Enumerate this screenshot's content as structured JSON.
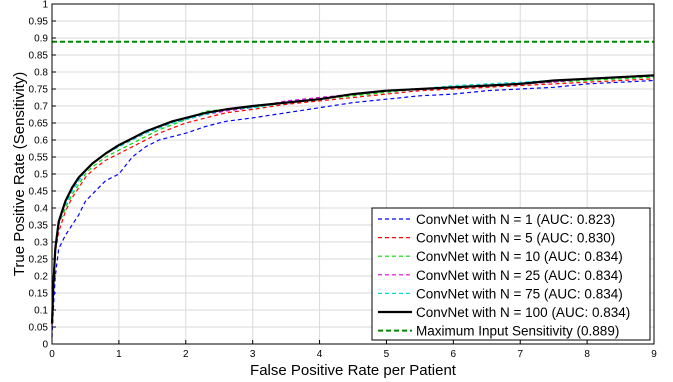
{
  "chart_data": {
    "type": "line",
    "title": "",
    "xlabel": "False Positive Rate per Patient",
    "ylabel": "True Positive Rate (Sensitivity)",
    "xlim": [
      0,
      9
    ],
    "ylim": [
      0,
      1
    ],
    "xticks": [
      0,
      1,
      2,
      3,
      4,
      5,
      6,
      7,
      8,
      9
    ],
    "yticks": [
      0,
      0.05,
      0.1,
      0.15,
      0.2,
      0.25,
      0.3,
      0.35,
      0.4,
      0.45,
      0.5,
      0.55,
      0.6,
      0.65,
      0.7,
      0.75,
      0.8,
      0.85,
      0.9,
      0.95,
      1
    ],
    "grid": true,
    "legend_position": "bottom-right",
    "series": [
      {
        "name": "ConvNet with N = 1 (AUC: 0.823)",
        "color": "#0000ff",
        "style": "dashed",
        "x": [
          0,
          0.02,
          0.05,
          0.1,
          0.2,
          0.3,
          0.4,
          0.5,
          0.6,
          0.8,
          1.0,
          1.2,
          1.4,
          1.6,
          1.8,
          2.0,
          2.3,
          2.6,
          3.0,
          3.5,
          4.0,
          4.5,
          5.0,
          5.5,
          6.0,
          6.5,
          7.0,
          7.5,
          8.0,
          8.5,
          9.0
        ],
        "y": [
          0.02,
          0.1,
          0.2,
          0.28,
          0.32,
          0.35,
          0.38,
          0.42,
          0.44,
          0.48,
          0.5,
          0.55,
          0.58,
          0.6,
          0.61,
          0.62,
          0.64,
          0.655,
          0.665,
          0.68,
          0.695,
          0.71,
          0.72,
          0.73,
          0.735,
          0.745,
          0.75,
          0.755,
          0.765,
          0.77,
          0.775
        ]
      },
      {
        "name": "ConvNet with N = 5 (AUC: 0.830)",
        "color": "#ff0000",
        "style": "dashed",
        "x": [
          0,
          0.02,
          0.05,
          0.1,
          0.2,
          0.3,
          0.4,
          0.5,
          0.6,
          0.8,
          1.0,
          1.2,
          1.4,
          1.6,
          1.8,
          2.0,
          2.3,
          2.6,
          3.0,
          3.5,
          4.0,
          4.5,
          5.0,
          5.5,
          6.0,
          6.5,
          7.0,
          7.5,
          8.0,
          8.5,
          9.0
        ],
        "y": [
          0.05,
          0.16,
          0.27,
          0.33,
          0.39,
          0.43,
          0.46,
          0.49,
          0.51,
          0.54,
          0.56,
          0.58,
          0.6,
          0.62,
          0.635,
          0.65,
          0.665,
          0.68,
          0.69,
          0.705,
          0.715,
          0.725,
          0.735,
          0.745,
          0.75,
          0.755,
          0.76,
          0.765,
          0.77,
          0.775,
          0.78
        ]
      },
      {
        "name": "ConvNet with N = 10 (AUC: 0.834)",
        "color": "#00dd00",
        "style": "dashed",
        "x": [
          0,
          0.02,
          0.05,
          0.1,
          0.2,
          0.3,
          0.4,
          0.5,
          0.6,
          0.8,
          1.0,
          1.2,
          1.4,
          1.6,
          1.8,
          2.0,
          2.3,
          2.6,
          3.0,
          3.5,
          4.0,
          4.5,
          5.0,
          5.5,
          6.0,
          6.5,
          7.0,
          7.5,
          8.0,
          8.5,
          9.0
        ],
        "y": [
          0.06,
          0.18,
          0.28,
          0.35,
          0.4,
          0.44,
          0.47,
          0.5,
          0.52,
          0.55,
          0.57,
          0.59,
          0.61,
          0.63,
          0.645,
          0.66,
          0.685,
          0.69,
          0.695,
          0.71,
          0.72,
          0.73,
          0.74,
          0.75,
          0.755,
          0.76,
          0.765,
          0.77,
          0.775,
          0.78,
          0.785
        ]
      },
      {
        "name": "ConvNet with N = 25 (AUC: 0.834)",
        "color": "#dd00dd",
        "style": "dashed",
        "x": [
          0,
          0.02,
          0.05,
          0.1,
          0.2,
          0.3,
          0.4,
          0.5,
          0.6,
          0.8,
          1.0,
          1.2,
          1.4,
          1.6,
          1.8,
          2.0,
          2.3,
          2.6,
          3.0,
          3.5,
          4.0,
          4.5,
          5.0,
          5.5,
          6.0,
          6.5,
          7.0,
          7.5,
          8.0,
          8.5,
          9.0
        ],
        "y": [
          0.06,
          0.17,
          0.28,
          0.35,
          0.41,
          0.45,
          0.48,
          0.51,
          0.53,
          0.56,
          0.58,
          0.6,
          0.62,
          0.635,
          0.65,
          0.66,
          0.675,
          0.685,
          0.695,
          0.715,
          0.725,
          0.735,
          0.745,
          0.75,
          0.755,
          0.76,
          0.765,
          0.77,
          0.78,
          0.785,
          0.79
        ]
      },
      {
        "name": "ConvNet with N = 75 (AUC: 0.834)",
        "color": "#00dddd",
        "style": "dashed",
        "x": [
          0,
          0.02,
          0.05,
          0.1,
          0.2,
          0.3,
          0.4,
          0.5,
          0.6,
          0.8,
          1.0,
          1.2,
          1.4,
          1.6,
          1.8,
          2.0,
          2.3,
          2.6,
          3.0,
          3.5,
          4.0,
          4.5,
          5.0,
          5.5,
          6.0,
          6.5,
          7.0,
          7.5,
          8.0,
          8.5,
          9.0
        ],
        "y": [
          0.06,
          0.17,
          0.28,
          0.35,
          0.41,
          0.45,
          0.48,
          0.51,
          0.53,
          0.56,
          0.58,
          0.6,
          0.62,
          0.635,
          0.65,
          0.66,
          0.675,
          0.69,
          0.695,
          0.71,
          0.72,
          0.735,
          0.745,
          0.75,
          0.76,
          0.765,
          0.77,
          0.775,
          0.78,
          0.785,
          0.79
        ]
      },
      {
        "name": "ConvNet with N = 100 (AUC: 0.834)",
        "color": "#000000",
        "style": "solid",
        "x": [
          0,
          0.02,
          0.05,
          0.1,
          0.2,
          0.3,
          0.4,
          0.5,
          0.6,
          0.8,
          1.0,
          1.2,
          1.4,
          1.6,
          1.8,
          2.0,
          2.3,
          2.6,
          3.0,
          3.5,
          4.0,
          4.5,
          5.0,
          5.5,
          6.0,
          6.5,
          7.0,
          7.5,
          8.0,
          8.5,
          9.0
        ],
        "y": [
          0.06,
          0.17,
          0.28,
          0.36,
          0.42,
          0.46,
          0.49,
          0.51,
          0.53,
          0.56,
          0.585,
          0.605,
          0.625,
          0.64,
          0.655,
          0.665,
          0.68,
          0.69,
          0.7,
          0.71,
          0.72,
          0.735,
          0.745,
          0.75,
          0.755,
          0.76,
          0.765,
          0.775,
          0.78,
          0.785,
          0.79
        ]
      },
      {
        "name": "Maximum Input Sensitivity (0.889)",
        "color": "#008800",
        "style": "dashed-thick",
        "x": [
          0,
          9
        ],
        "y": [
          0.889,
          0.889
        ]
      }
    ]
  }
}
